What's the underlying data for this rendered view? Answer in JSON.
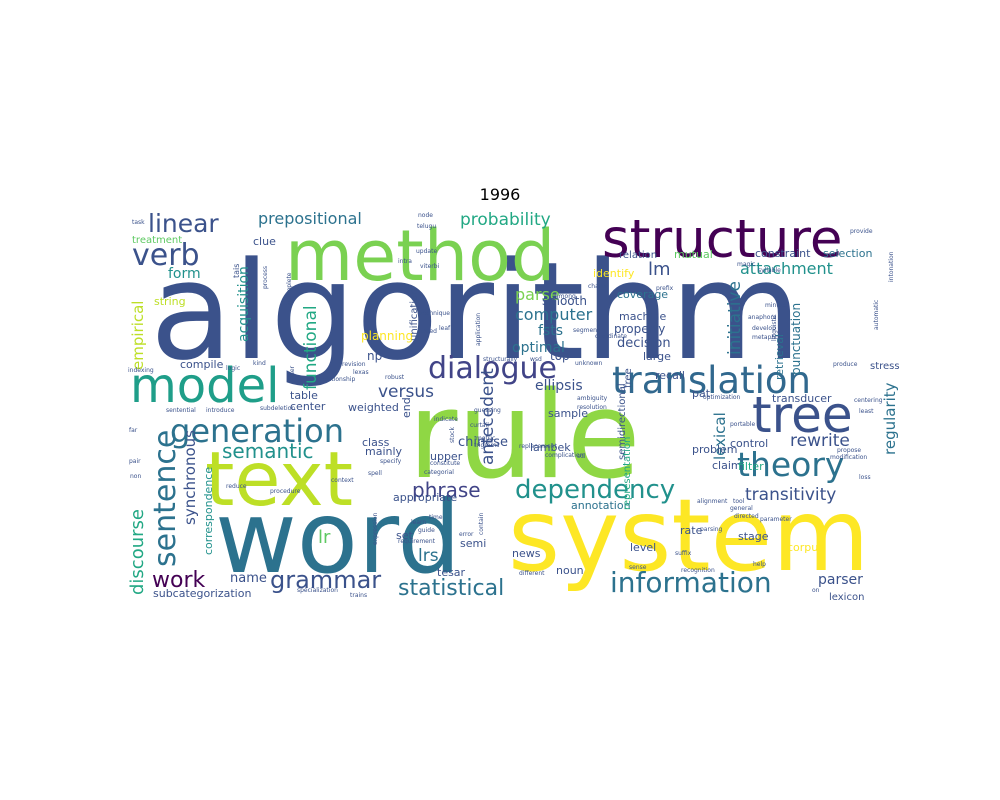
{
  "chart_data": {
    "type": "wordcloud",
    "title": "1996",
    "words": [
      {
        "text": "algorithm",
        "color": "#3b528b"
      },
      {
        "text": "rule",
        "color": "#8fd744"
      },
      {
        "text": "word",
        "color": "#2c728e"
      },
      {
        "text": "system",
        "color": "#fde725"
      },
      {
        "text": "method",
        "color": "#7ad151"
      },
      {
        "text": "structure",
        "color": "#440154"
      },
      {
        "text": "text",
        "color": "#bddf26"
      },
      {
        "text": "model",
        "color": "#1f9e89"
      },
      {
        "text": "translation",
        "color": "#31688e"
      },
      {
        "text": "tree",
        "color": "#3b528b"
      },
      {
        "text": "dialogue",
        "color": "#414487"
      },
      {
        "text": "generation",
        "color": "#2c728e"
      },
      {
        "text": "theory",
        "color": "#2c728e"
      },
      {
        "text": "sentence",
        "color": "#2c728e"
      },
      {
        "text": "dependency",
        "color": "#21918c"
      },
      {
        "text": "information",
        "color": "#2c728e"
      },
      {
        "text": "grammar",
        "color": "#3b528b"
      },
      {
        "text": "linear",
        "color": "#3b528b"
      },
      {
        "text": "verb",
        "color": "#3b528b"
      },
      {
        "text": "work",
        "color": "#440154"
      },
      {
        "text": "statistical",
        "color": "#2c728e"
      },
      {
        "text": "semantic",
        "color": "#21918c"
      },
      {
        "text": "phrase",
        "color": "#414487"
      },
      {
        "text": "probability",
        "color": "#22a884"
      },
      {
        "text": "prepositional",
        "color": "#2c728e"
      },
      {
        "text": "attachment",
        "color": "#21918c"
      },
      {
        "text": "discourse",
        "color": "#22a884"
      },
      {
        "text": "transitivity",
        "color": "#3b528b"
      },
      {
        "text": "functional",
        "color": "#22a884"
      },
      {
        "text": "rewrite",
        "color": "#3b528b"
      },
      {
        "text": "initiative",
        "color": "#2c728e"
      },
      {
        "text": "regularity",
        "color": "#2c728e"
      },
      {
        "text": "synchronous",
        "color": "#3b528b"
      },
      {
        "text": "antecedent",
        "color": "#3b528b"
      },
      {
        "text": "versus",
        "color": "#3b528b"
      },
      {
        "text": "lexical",
        "color": "#2c728e"
      },
      {
        "text": "empirical",
        "color": "#bddf26"
      },
      {
        "text": "computer",
        "color": "#2c728e"
      },
      {
        "text": "parse",
        "color": "#7ad151"
      },
      {
        "text": "lm",
        "color": "#3b528b"
      },
      {
        "text": "form",
        "color": "#21918c"
      },
      {
        "text": "acquisition",
        "color": "#21918c"
      },
      {
        "text": "correspondence",
        "color": "#21918c"
      },
      {
        "text": "lrs",
        "color": "#2c728e"
      },
      {
        "text": "lr",
        "color": "#5ec962"
      },
      {
        "text": "name",
        "color": "#3b528b"
      },
      {
        "text": "parser",
        "color": "#3b528b"
      },
      {
        "text": "chinese",
        "color": "#3b528b"
      },
      {
        "text": "ellipsis",
        "color": "#3b528b"
      },
      {
        "text": "fsts",
        "color": "#2c728e"
      },
      {
        "text": "optimal",
        "color": "#2c728e"
      },
      {
        "text": "decision",
        "color": "#3b528b"
      },
      {
        "text": "property",
        "color": "#3b528b"
      },
      {
        "text": "machine",
        "color": "#3b528b"
      },
      {
        "text": "coverage",
        "color": "#2c728e"
      },
      {
        "text": "smooth",
        "color": "#3b528b"
      },
      {
        "text": "identify",
        "color": "#fde725"
      },
      {
        "text": "relation",
        "color": "#3b528b"
      },
      {
        "text": "mutual",
        "color": "#5ec962"
      },
      {
        "text": "constraint",
        "color": "#3b528b"
      },
      {
        "text": "selection",
        "color": "#2c728e"
      },
      {
        "text": "clue",
        "color": "#3b528b"
      },
      {
        "text": "string",
        "color": "#bddf26"
      },
      {
        "text": "compile",
        "color": "#3b528b"
      },
      {
        "text": "planning",
        "color": "#fde725"
      },
      {
        "text": "np",
        "color": "#3b528b"
      },
      {
        "text": "top",
        "color": "#3b528b"
      },
      {
        "text": "large",
        "color": "#3b528b"
      },
      {
        "text": "recall",
        "color": "#3b528b"
      },
      {
        "text": "table",
        "color": "#3b528b"
      },
      {
        "text": "center",
        "color": "#3b528b"
      },
      {
        "text": "weighted",
        "color": "#3b528b"
      },
      {
        "text": "class",
        "color": "#3b528b"
      },
      {
        "text": "mainly",
        "color": "#3b528b"
      },
      {
        "text": "upper",
        "color": "#3b528b"
      },
      {
        "text": "appropriate",
        "color": "#3b528b"
      },
      {
        "text": "annotation",
        "color": "#2c728e"
      },
      {
        "text": "lambek",
        "color": "#3b528b"
      },
      {
        "text": "sample",
        "color": "#3b528b"
      },
      {
        "text": "semidirectional",
        "color": "#3b528b"
      },
      {
        "text": "representation",
        "color": "#22a884"
      },
      {
        "text": "punctuation",
        "color": "#2c728e"
      },
      {
        "text": "retrieval",
        "color": "#2c728e"
      },
      {
        "text": "transducer",
        "color": "#3b528b"
      },
      {
        "text": "control",
        "color": "#3b528b"
      },
      {
        "text": "problem",
        "color": "#3b528b"
      },
      {
        "text": "claim",
        "color": "#3b528b"
      },
      {
        "text": "filter",
        "color": "#22a884"
      },
      {
        "text": "stage",
        "color": "#3b528b"
      },
      {
        "text": "rate",
        "color": "#3b528b"
      },
      {
        "text": "level",
        "color": "#3b528b"
      },
      {
        "text": "corpus",
        "color": "#fde725"
      },
      {
        "text": "news",
        "color": "#3b528b"
      },
      {
        "text": "noun",
        "color": "#3b528b"
      },
      {
        "text": "set",
        "color": "#3b528b"
      },
      {
        "text": "semi",
        "color": "#3b528b"
      },
      {
        "text": "tesar",
        "color": "#3b528b"
      },
      {
        "text": "subcategorization",
        "color": "#3b528b"
      },
      {
        "text": "lexicon",
        "color": "#3b528b"
      },
      {
        "text": "treatment",
        "color": "#5ec962"
      },
      {
        "text": "stress",
        "color": "#3b528b"
      },
      {
        "text": "free",
        "color": "#3b528b"
      },
      {
        "text": "pat",
        "color": "#3b528b"
      },
      {
        "text": "end",
        "color": "#3b528b"
      },
      {
        "text": "unification",
        "color": "#3b528b"
      },
      {
        "text": "task",
        "color": "#3b528b"
      },
      {
        "text": "tais",
        "color": "#3b528b"
      },
      {
        "text": "process",
        "color": "#3b528b"
      },
      {
        "text": "incomplete",
        "color": "#3b528b"
      },
      {
        "text": "kind",
        "color": "#3b528b"
      },
      {
        "text": "logic",
        "color": "#3b528b"
      },
      {
        "text": "indexing",
        "color": "#3b528b"
      },
      {
        "text": "user",
        "color": "#3b528b"
      },
      {
        "text": "revision",
        "color": "#3b528b"
      },
      {
        "text": "lexas",
        "color": "#3b528b"
      },
      {
        "text": "robust",
        "color": "#3b528b"
      },
      {
        "text": "relationship",
        "color": "#3b528b"
      },
      {
        "text": "sentential",
        "color": "#3b528b"
      },
      {
        "text": "introduce",
        "color": "#3b528b"
      },
      {
        "text": "subdeletion",
        "color": "#3b528b"
      },
      {
        "text": "far",
        "color": "#3b528b"
      },
      {
        "text": "pair",
        "color": "#3b528b"
      },
      {
        "text": "reduce",
        "color": "#3b528b"
      },
      {
        "text": "procedure",
        "color": "#3b528b"
      },
      {
        "text": "context",
        "color": "#3b528b"
      },
      {
        "text": "spell",
        "color": "#3b528b"
      },
      {
        "text": "specify",
        "color": "#3b528b"
      },
      {
        "text": "categorial",
        "color": "#3b528b"
      },
      {
        "text": "guide",
        "color": "#3b528b"
      },
      {
        "text": "learn",
        "color": "#3b528b"
      },
      {
        "text": "requirement",
        "color": "#3b528b"
      },
      {
        "text": "expression",
        "color": "#3b528b"
      },
      {
        "text": "error",
        "color": "#3b528b"
      },
      {
        "text": "different",
        "color": "#3b528b"
      },
      {
        "text": "suffix",
        "color": "#3b528b"
      },
      {
        "text": "sense",
        "color": "#3b528b"
      },
      {
        "text": "recognition",
        "color": "#3b528b"
      },
      {
        "text": "parsing",
        "color": "#3b528b"
      },
      {
        "text": "directed",
        "color": "#3b528b"
      },
      {
        "text": "help",
        "color": "#3b528b"
      },
      {
        "text": "parameter",
        "color": "#3b528b"
      },
      {
        "text": "general",
        "color": "#3b528b"
      },
      {
        "text": "tool",
        "color": "#3b528b"
      },
      {
        "text": "alignment",
        "color": "#3b528b"
      },
      {
        "text": "portable",
        "color": "#3b528b"
      },
      {
        "text": "least",
        "color": "#3b528b"
      },
      {
        "text": "loss",
        "color": "#3b528b"
      },
      {
        "text": "centering",
        "color": "#3b528b"
      },
      {
        "text": "produce",
        "color": "#3b528b"
      },
      {
        "text": "propose",
        "color": "#3b528b"
      },
      {
        "text": "modification",
        "color": "#3b528b"
      },
      {
        "text": "metaphor",
        "color": "#3b528b"
      },
      {
        "text": "develop",
        "color": "#3b528b"
      },
      {
        "text": "anaphora",
        "color": "#3b528b"
      },
      {
        "text": "minute",
        "color": "#3b528b"
      },
      {
        "text": "syllable",
        "color": "#3b528b"
      },
      {
        "text": "magic",
        "color": "#3b528b"
      },
      {
        "text": "charts",
        "color": "#3b528b"
      },
      {
        "text": "prefix",
        "color": "#3b528b"
      },
      {
        "text": "among",
        "color": "#3b528b"
      },
      {
        "text": "segment",
        "color": "#3b528b"
      },
      {
        "text": "leaf",
        "color": "#3b528b"
      },
      {
        "text": "application",
        "color": "#3b528b"
      },
      {
        "text": "technique",
        "color": "#3b528b"
      },
      {
        "text": "viterbi",
        "color": "#3b528b"
      },
      {
        "text": "intra",
        "color": "#3b528b"
      },
      {
        "text": "update",
        "color": "#3b528b"
      },
      {
        "text": "node",
        "color": "#3b528b"
      },
      {
        "text": "telugu",
        "color": "#3b528b"
      },
      {
        "text": "costed",
        "color": "#3b528b"
      },
      {
        "text": "structurally",
        "color": "#3b528b"
      },
      {
        "text": "wsd",
        "color": "#3b528b"
      },
      {
        "text": "unknown",
        "color": "#3b528b"
      },
      {
        "text": "guessing",
        "color": "#3b528b"
      },
      {
        "text": "indicate",
        "color": "#3b528b"
      },
      {
        "text": "curtail",
        "color": "#3b528b"
      },
      {
        "text": "stock",
        "color": "#3b528b"
      },
      {
        "text": "metric",
        "color": "#3b528b"
      },
      {
        "text": "trigrams",
        "color": "#3b528b"
      },
      {
        "text": "constitute",
        "color": "#3b528b"
      },
      {
        "text": "ambiguity",
        "color": "#3b528b"
      },
      {
        "text": "resolution",
        "color": "#3b528b"
      },
      {
        "text": "replacement",
        "color": "#3b528b"
      },
      {
        "text": "sdl",
        "color": "#3b528b"
      },
      {
        "text": "time",
        "color": "#3b528b"
      },
      {
        "text": "complication",
        "color": "#3b528b"
      },
      {
        "text": "optimization",
        "color": "#3b528b"
      },
      {
        "text": "coordinate",
        "color": "#3b528b"
      },
      {
        "text": "provide",
        "color": "#3b528b"
      },
      {
        "text": "linguistic",
        "color": "#3b528b"
      },
      {
        "text": "automatic",
        "color": "#3b528b"
      },
      {
        "text": "specialization",
        "color": "#3b528b"
      },
      {
        "text": "trains",
        "color": "#3b528b"
      },
      {
        "text": "non",
        "color": "#3b528b"
      },
      {
        "text": "intonation",
        "color": "#3b528b"
      },
      {
        "text": "contain",
        "color": "#3b528b"
      },
      {
        "text": "on",
        "color": "#3b528b"
      }
    ]
  }
}
